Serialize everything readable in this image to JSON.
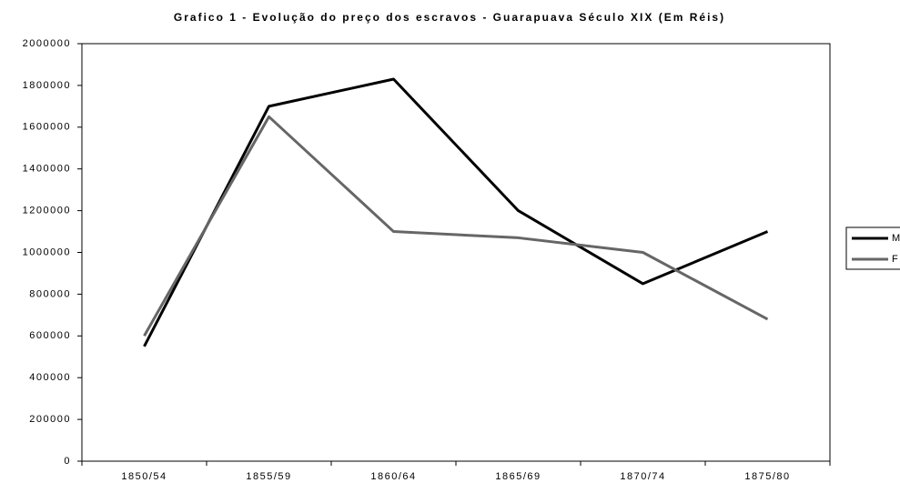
{
  "chart_data": {
    "type": "line",
    "title": "Grafico 1 - Evolução do preço dos escravos - Guarapuava Século XIX (Em Réis)",
    "categories": [
      "1850/54",
      "1855/59",
      "1860/64",
      "1865/69",
      "1870/74",
      "1875/80"
    ],
    "series": [
      {
        "name": "M",
        "color": "#000000",
        "values": [
          550000,
          1700000,
          1830000,
          1200000,
          850000,
          1100000
        ]
      },
      {
        "name": "F",
        "color": "#666666",
        "values": [
          600000,
          1650000,
          1100000,
          1070000,
          1000000,
          680000
        ]
      }
    ],
    "ylim": [
      0,
      2000000
    ],
    "yticks": [
      0,
      200000,
      400000,
      600000,
      800000,
      1000000,
      1200000,
      1400000,
      1600000,
      1800000,
      2000000
    ],
    "grid": false,
    "legend": "right"
  }
}
